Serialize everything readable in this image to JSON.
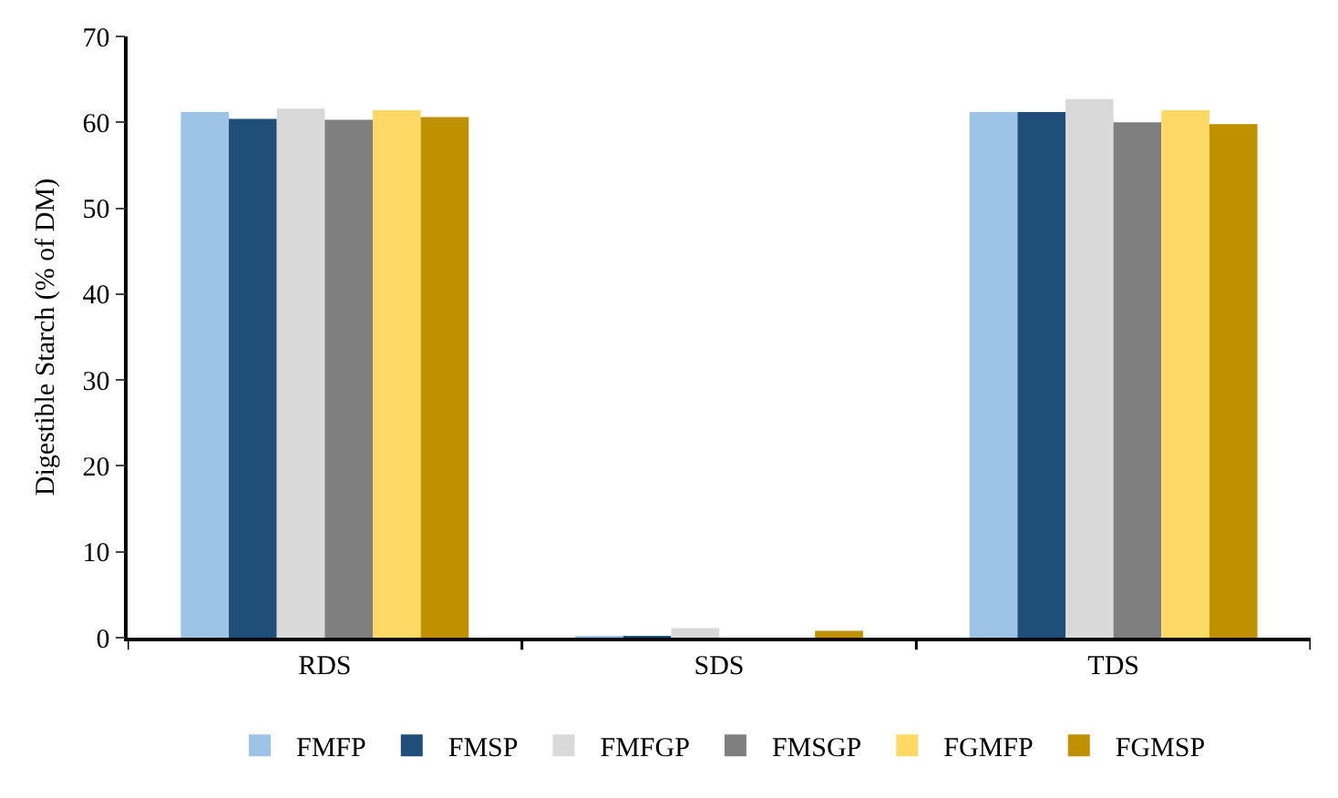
{
  "chart_data": {
    "type": "bar",
    "ylabel": "Digestible Starch (% of DM)",
    "categories": [
      "RDS",
      "SDS",
      "TDS"
    ],
    "series": [
      {
        "name": "FMFP",
        "color": "#9dc3e6",
        "values": [
          61.2,
          0.1,
          61.2
        ]
      },
      {
        "name": "FMSP",
        "color": "#1f4e79",
        "values": [
          60.4,
          0.1,
          61.2
        ]
      },
      {
        "name": "FMFGP",
        "color": "#d9d9d9",
        "values": [
          61.6,
          1.1,
          62.7
        ]
      },
      {
        "name": "FMSGP",
        "color": "#7f7f7f",
        "values": [
          60.3,
          0,
          60.0
        ]
      },
      {
        "name": "FGMFP",
        "color": "#ffd966",
        "values": [
          61.4,
          0,
          61.4
        ]
      },
      {
        "name": "FGMSP",
        "color": "#bf9000",
        "values": [
          60.6,
          0.8,
          59.8
        ]
      }
    ],
    "ylim": [
      0,
      70
    ],
    "yticks": [
      0,
      10,
      20,
      30,
      40,
      50,
      60,
      70
    ],
    "grid": false,
    "legend": "bottom"
  }
}
